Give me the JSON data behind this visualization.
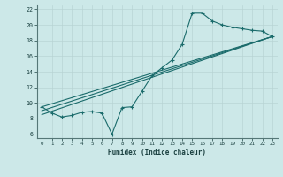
{
  "xlabel": "Humidex (Indice chaleur)",
  "bg_color": "#cce8e8",
  "grid_color": "#b8d4d4",
  "line_color": "#1a6b6b",
  "xlim": [
    -0.5,
    23.5
  ],
  "ylim": [
    5.5,
    22.5
  ],
  "xticks": [
    0,
    1,
    2,
    3,
    4,
    5,
    6,
    7,
    8,
    9,
    10,
    11,
    12,
    13,
    14,
    15,
    16,
    17,
    18,
    19,
    20,
    21,
    22,
    23
  ],
  "yticks": [
    6,
    8,
    10,
    12,
    14,
    16,
    18,
    20,
    22
  ],
  "series1_x": [
    0,
    1,
    2,
    3,
    4,
    5,
    6,
    7,
    8,
    9,
    10,
    11,
    12,
    13,
    14,
    15,
    16,
    17,
    18,
    19,
    20,
    21,
    22,
    23
  ],
  "series1_y": [
    9.5,
    8.7,
    8.2,
    8.4,
    8.8,
    8.9,
    8.7,
    6.0,
    9.4,
    9.5,
    11.5,
    13.5,
    14.5,
    15.5,
    17.5,
    21.5,
    21.5,
    20.5,
    20.0,
    19.7,
    19.5,
    19.3,
    19.2,
    18.5
  ],
  "line2": {
    "x": [
      0,
      23
    ],
    "y": [
      8.5,
      18.5
    ]
  },
  "line3": {
    "x": [
      0,
      23
    ],
    "y": [
      9.0,
      18.5
    ]
  },
  "line4": {
    "x": [
      0,
      23
    ],
    "y": [
      9.5,
      18.5
    ]
  }
}
